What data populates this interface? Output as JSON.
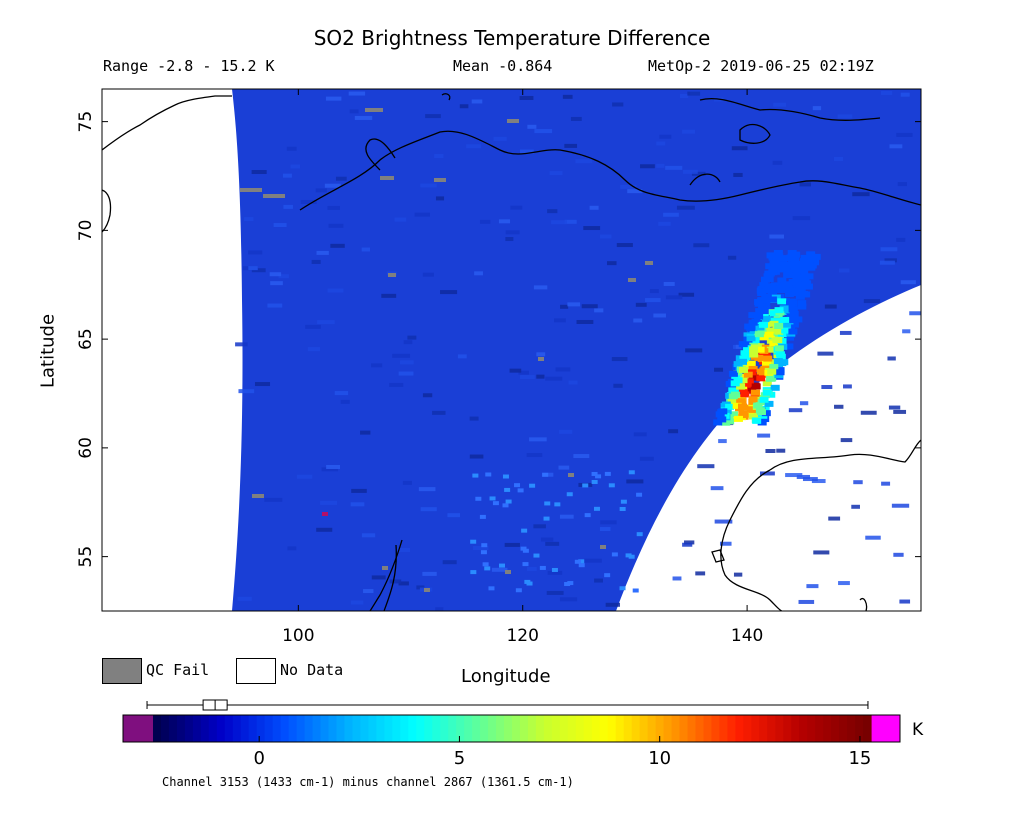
{
  "header": {
    "title": "SO2 Brightness Temperature Difference",
    "range": "Range -2.8 - 15.2 K",
    "mean": "Mean -0.864",
    "satellite_time": "MetOp-2 2019-06-25 02:19Z"
  },
  "axes": {
    "xlabel": "Longitude",
    "ylabel": "Latitude",
    "x_ticks": [
      "100",
      "120",
      "140"
    ],
    "y_ticks": [
      "55",
      "60",
      "65",
      "70",
      "75"
    ],
    "x_range": [
      82.5,
      155.5
    ],
    "y_range": [
      52.5,
      76.5
    ]
  },
  "legend": {
    "qc_fail_label": "QC Fail",
    "no_data_label": "No Data",
    "qc_fail_color": "#808080",
    "no_data_color": "#ffffff"
  },
  "colorbar": {
    "unit": "K",
    "ticks": [
      "0",
      "5",
      "10",
      "15"
    ],
    "tick_values": [
      0,
      5,
      10,
      15
    ],
    "range": [
      -3.4,
      16.0
    ],
    "under_color": "#7f0f7f",
    "over_color": "#ff00ff",
    "colormap": [
      "#000050",
      "#0000c8",
      "#0050ff",
      "#00b4ff",
      "#00ffff",
      "#60ff98",
      "#c8ff30",
      "#ffff00",
      "#ff9600",
      "#ff1e00",
      "#b40000",
      "#780000"
    ],
    "stats_boxplot": {
      "min": -2.8,
      "q1": -1.4,
      "median": -1.1,
      "q3": -0.8,
      "max": 15.2
    },
    "footnote": "Channel 3153 (1433 cm-1) minus channel 2867 (1361.5 cm-1)"
  },
  "map": {
    "background_color": "#1a3fd6",
    "plume_center": {
      "lon": 140.5,
      "lat": 64.0
    },
    "plume_peak_K": 15.2
  }
}
